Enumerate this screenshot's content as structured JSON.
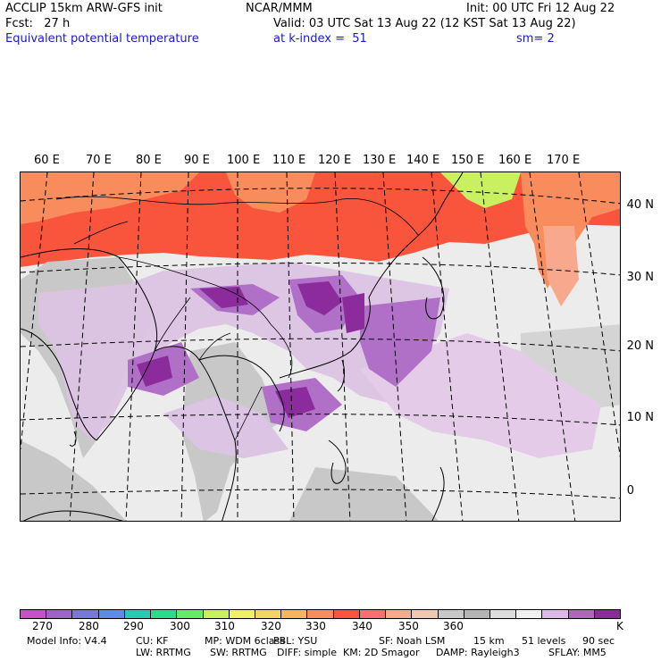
{
  "header": {
    "line1_left": "ACCLIP 15km ARW-GFS init",
    "line1_center": "NCAR/MMM",
    "line1_right": "Init: 00 UTC Fri 12 Aug 22",
    "line2_left": "Fcst:   27 h",
    "line2_right": "Valid: 03 UTC Sat 13 Aug 22 (12 KST Sat 13 Aug 22)",
    "line3_left": "Equivalent potential temperature",
    "line3_center": "at k-index =  51",
    "line3_right": "sm= 2"
  },
  "map": {
    "lon_labels": [
      "60 E",
      "70 E",
      "80 E",
      "90 E",
      "100 E",
      "110 E",
      "120 E",
      "130 E",
      "140 E",
      "150 E",
      "160 E",
      "170 E"
    ],
    "lat_labels": [
      "40 N",
      "30 N",
      "20 N",
      "10 N",
      "0"
    ],
    "colors": {
      "ocean_gray": "#ececec",
      "land_gray": "#c8c8c8",
      "hot_red": "#f8553c",
      "orange": "#f88c5c",
      "light_purple": "#d8b8e0",
      "mid_purple": "#b070c8",
      "dark_purple": "#8c2c9c",
      "green_yellow": "#c8f060"
    }
  },
  "colorbar": {
    "colors": [
      "#c850c8",
      "#9c64c8",
      "#7878dc",
      "#5c8ce8",
      "#28c8b4",
      "#2cdc8c",
      "#64ec64",
      "#c8f05c",
      "#f0f064",
      "#f0d464",
      "#f8b45c",
      "#f88c5c",
      "#f8553c",
      "#f87070",
      "#f8a88c",
      "#f0c8b0",
      "#c8c8c8",
      "#b4b4b4",
      "#dcdcdc",
      "#f0f0f0",
      "#e0b8e8",
      "#b464c0",
      "#8c2c9c"
    ],
    "labels": [
      "270",
      "280",
      "290",
      "300",
      "310",
      "320",
      "330",
      "340",
      "350",
      "360",
      "K"
    ]
  },
  "model_info": {
    "line1": [
      "Model Info: V4.4",
      "CU: KF",
      "MP: WDM 6class",
      "PBL: YSU",
      "SF: Noah LSM",
      "15 km",
      "51 levels",
      "90 sec"
    ],
    "line2": [
      "LW: RRTMG",
      "SW: RRTMG",
      "DIFF: simple",
      "KM: 2D Smagor",
      "DAMP: Rayleigh3",
      "SFLAY: MM5"
    ]
  }
}
